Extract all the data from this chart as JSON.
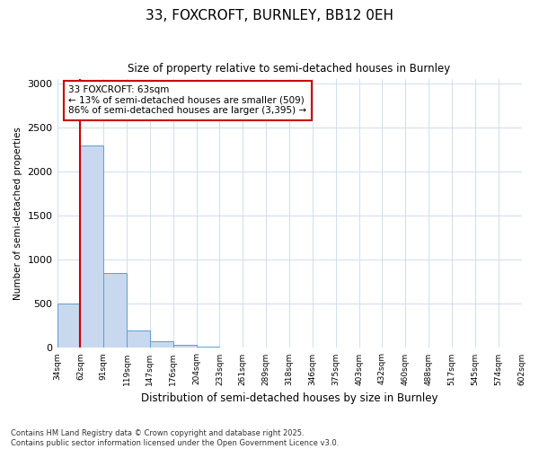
{
  "title1": "33, FOXCROFT, BURNLEY, BB12 0EH",
  "title2": "Size of property relative to semi-detached houses in Burnley",
  "xlabel": "Distribution of semi-detached houses by size in Burnley",
  "ylabel": "Number of semi-detached properties",
  "bar_values": [
    500,
    2300,
    850,
    200,
    80,
    40,
    15,
    5,
    5,
    3,
    0,
    0,
    0,
    0,
    0,
    0,
    0,
    0,
    0,
    0
  ],
  "bin_labels": [
    "34sqm",
    "62sqm",
    "91sqm",
    "119sqm",
    "147sqm",
    "176sqm",
    "204sqm",
    "233sqm",
    "261sqm",
    "289sqm",
    "318sqm",
    "346sqm",
    "375sqm",
    "403sqm",
    "432sqm",
    "460sqm",
    "488sqm",
    "517sqm",
    "545sqm",
    "574sqm",
    "602sqm"
  ],
  "bar_color": "#c8d8ee",
  "bar_edge_color": "#5a9fd4",
  "vline_color": "#cc0000",
  "vline_bin_index": 1,
  "annotation_text": "33 FOXCROFT: 63sqm\n← 13% of semi-detached houses are smaller (509)\n86% of semi-detached houses are larger (3,395) →",
  "annotation_box_color": "#cc0000",
  "ylim": [
    0,
    3050
  ],
  "yticks": [
    0,
    500,
    1000,
    1500,
    2000,
    2500,
    3000
  ],
  "footnote": "Contains HM Land Registry data © Crown copyright and database right 2025.\nContains public sector information licensed under the Open Government Licence v3.0.",
  "bg_color": "#ffffff"
}
